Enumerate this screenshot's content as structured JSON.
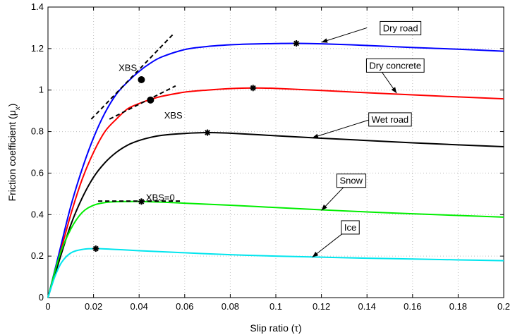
{
  "chart_data": {
    "type": "line",
    "xlabel": "Slip ratio (τ)",
    "ylabel": "Friction coefficient (μ",
    "ylabel_sub": "x",
    "ylabel_close": ")",
    "xlim": [
      0,
      0.2
    ],
    "ylim": [
      0,
      1.4
    ],
    "grid": true,
    "x_ticks": [
      0,
      0.02,
      0.04,
      0.06,
      0.08,
      0.1,
      0.12,
      0.14,
      0.16,
      0.18,
      0.2
    ],
    "x_tick_labels": [
      "0",
      "0.02",
      "0.04",
      "0.06",
      "0.08",
      "0.1",
      "0.12",
      "0.14",
      "0.16",
      "0.18",
      "0.2"
    ],
    "y_ticks": [
      0,
      0.2,
      0.4,
      0.6,
      0.8,
      1,
      1.2,
      1.4
    ],
    "y_tick_labels": [
      "0",
      "0.2",
      "0.4",
      "0.6",
      "0.8",
      "1",
      "1.2",
      "1.4"
    ],
    "series": [
      {
        "name": "Dry road",
        "color": "#0000ff",
        "x": [
          0,
          0.005,
          0.01,
          0.015,
          0.02,
          0.025,
          0.03,
          0.035,
          0.04,
          0.045,
          0.05,
          0.06,
          0.07,
          0.08,
          0.09,
          0.1,
          0.109,
          0.12,
          0.14,
          0.16,
          0.18,
          0.2
        ],
        "y": [
          0,
          0.22,
          0.44,
          0.62,
          0.77,
          0.89,
          0.98,
          1.04,
          1.09,
          1.13,
          1.16,
          1.195,
          1.21,
          1.218,
          1.222,
          1.224,
          1.225,
          1.223,
          1.215,
          1.205,
          1.197,
          1.187
        ],
        "peak": {
          "x": 0.109,
          "y": 1.225
        }
      },
      {
        "name": "Dry concrete",
        "color": "#ff0000",
        "x": [
          0,
          0.005,
          0.01,
          0.015,
          0.02,
          0.025,
          0.03,
          0.035,
          0.04,
          0.045,
          0.05,
          0.06,
          0.07,
          0.08,
          0.09,
          0.1,
          0.12,
          0.14,
          0.16,
          0.18,
          0.2
        ],
        "y": [
          0,
          0.2,
          0.4,
          0.57,
          0.7,
          0.8,
          0.86,
          0.91,
          0.935,
          0.955,
          0.97,
          0.99,
          1.0,
          1.007,
          1.01,
          1.008,
          0.998,
          0.987,
          0.977,
          0.967,
          0.958
        ],
        "peak": {
          "x": 0.09,
          "y": 1.01
        }
      },
      {
        "name": "Wet road",
        "color": "#000000",
        "x": [
          0,
          0.005,
          0.01,
          0.015,
          0.02,
          0.025,
          0.03,
          0.035,
          0.04,
          0.045,
          0.05,
          0.06,
          0.07,
          0.08,
          0.1,
          0.12,
          0.14,
          0.16,
          0.18,
          0.2
        ],
        "y": [
          0,
          0.18,
          0.35,
          0.48,
          0.58,
          0.65,
          0.7,
          0.735,
          0.757,
          0.772,
          0.782,
          0.791,
          0.795,
          0.792,
          0.78,
          0.768,
          0.757,
          0.746,
          0.736,
          0.727
        ],
        "peak": {
          "x": 0.07,
          "y": 0.795
        }
      },
      {
        "name": "Snow",
        "color": "#00ee00",
        "x": [
          0,
          0.005,
          0.01,
          0.015,
          0.02,
          0.025,
          0.03,
          0.035,
          0.041,
          0.05,
          0.06,
          0.08,
          0.1,
          0.12,
          0.14,
          0.16,
          0.18,
          0.2
        ],
        "y": [
          0,
          0.2,
          0.33,
          0.41,
          0.445,
          0.458,
          0.462,
          0.463,
          0.463,
          0.46,
          0.455,
          0.445,
          0.434,
          0.423,
          0.413,
          0.404,
          0.396,
          0.388
        ],
        "peak": {
          "x": 0.041,
          "y": 0.463
        }
      },
      {
        "name": "Ice",
        "color": "#00e5ee",
        "x": [
          0,
          0.003,
          0.006,
          0.01,
          0.015,
          0.021,
          0.03,
          0.04,
          0.06,
          0.08,
          0.1,
          0.12,
          0.14,
          0.16,
          0.18,
          0.2
        ],
        "y": [
          0,
          0.1,
          0.17,
          0.215,
          0.232,
          0.236,
          0.232,
          0.226,
          0.216,
          0.207,
          0.2,
          0.195,
          0.19,
          0.186,
          0.182,
          0.178
        ],
        "peak": {
          "x": 0.021,
          "y": 0.236
        }
      }
    ],
    "tangent_lines": [
      {
        "x": [
          0.019,
          0.055
        ],
        "y": [
          0.86,
          1.27
        ],
        "marker": {
          "x": 0.041,
          "y": 1.05
        }
      },
      {
        "x": [
          0.027,
          0.056
        ],
        "y": [
          0.86,
          1.02
        ],
        "marker": {
          "x": 0.045,
          "y": 0.952
        }
      },
      {
        "x": [
          0.022,
          0.058
        ],
        "y": [
          0.465,
          0.465
        ],
        "marker": null
      }
    ],
    "annotations": [
      {
        "text": "Dry road",
        "boxed": true,
        "text_x": 0.147,
        "text_y": 1.3,
        "arrow_from": [
          0.14,
          1.3
        ],
        "arrow_to": [
          0.12,
          1.23
        ]
      },
      {
        "text": "Dry concrete",
        "boxed": true,
        "text_x": 0.141,
        "text_y": 1.12,
        "arrow_from": [
          0.146,
          1.095
        ],
        "arrow_to": [
          0.153,
          0.985
        ]
      },
      {
        "text": "Wet road",
        "boxed": true,
        "text_x": 0.142,
        "text_y": 0.86,
        "arrow_from": [
          0.142,
          0.86
        ],
        "arrow_to": [
          0.116,
          0.77
        ]
      },
      {
        "text": "Snow",
        "boxed": true,
        "text_x": 0.128,
        "text_y": 0.565,
        "arrow_from": [
          0.13,
          0.535
        ],
        "arrow_to": [
          0.12,
          0.42
        ]
      },
      {
        "text": "Ice",
        "boxed": true,
        "text_x": 0.13,
        "text_y": 0.34,
        "arrow_from": [
          0.13,
          0.315
        ],
        "arrow_to": [
          0.116,
          0.195
        ]
      },
      {
        "text": "XBS",
        "boxed": false,
        "text_x": 0.031,
        "text_y": 1.11
      },
      {
        "text": "XBS",
        "boxed": false,
        "text_x": 0.051,
        "text_y": 0.88
      },
      {
        "text": "XBS=0",
        "boxed": false,
        "text_x": 0.043,
        "text_y": 0.485
      }
    ]
  }
}
